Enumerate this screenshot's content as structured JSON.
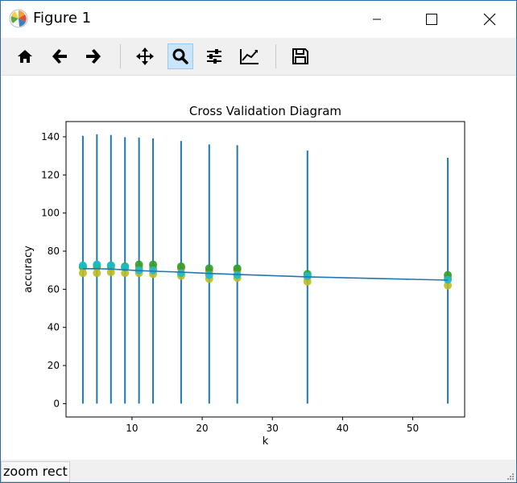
{
  "window": {
    "title": "Figure 1"
  },
  "toolbar": {
    "tools": [
      {
        "name": "home-icon"
      },
      {
        "name": "back-arrow-icon"
      },
      {
        "name": "forward-arrow-icon"
      },
      {
        "name": "pan-icon"
      },
      {
        "name": "zoom-icon",
        "active": true
      },
      {
        "name": "subplots-icon"
      },
      {
        "name": "edit-axis-icon"
      },
      {
        "name": "save-icon"
      }
    ]
  },
  "status": {
    "text": "zoom rect"
  },
  "chart_data": {
    "type": "line",
    "title": "Cross Validation Diagram",
    "xlabel": "k",
    "ylabel": "accuracy",
    "xlim": [
      0.6,
      57.4
    ],
    "ylim": [
      -7,
      148
    ],
    "xticks": [
      10,
      20,
      30,
      40,
      50
    ],
    "yticks": [
      0,
      20,
      40,
      60,
      80,
      100,
      120,
      140
    ],
    "grid": false,
    "colors": {
      "line": "#1f77b4",
      "orange": "#ff7f0e",
      "green": "#2ca02c",
      "olive": "#bcbd22",
      "cyan": "#17becf"
    },
    "mean_line": {
      "x": [
        3,
        5,
        7,
        9,
        11,
        13,
        17,
        21,
        25,
        35,
        55
      ],
      "y": [
        70.8,
        70.8,
        70.6,
        70.2,
        69.8,
        69.5,
        69.0,
        68.3,
        67.8,
        66.5,
        64.8
      ]
    },
    "error_bars": {
      "x": [
        3,
        5,
        7,
        9,
        11,
        13,
        17,
        21,
        25,
        35,
        55
      ],
      "lower": [
        0,
        0,
        0,
        0,
        0,
        0,
        0,
        0,
        0,
        0,
        0
      ],
      "upper": [
        140.5,
        141.3,
        141.0,
        139.8,
        139.6,
        139.2,
        137.8,
        136.0,
        135.6,
        132.8,
        129.0
      ]
    },
    "series": [
      {
        "color": "orange",
        "x": [
          3,
          5,
          7,
          9,
          11,
          13,
          17,
          21,
          25,
          35,
          55
        ],
        "y": [
          71.5,
          71.5,
          71.3,
          71.5,
          71.3,
          71.3,
          71.0,
          69.5,
          70.0,
          66.5,
          66.0
        ]
      },
      {
        "color": "green",
        "x": [
          3,
          5,
          7,
          9,
          11,
          13,
          17,
          21,
          25,
          35,
          55
        ],
        "y": [
          72.0,
          72.5,
          72.5,
          72.0,
          73.0,
          73.0,
          72.0,
          71.0,
          71.0,
          68.0,
          67.5
        ]
      },
      {
        "color": "olive",
        "x": [
          3,
          5,
          7,
          9,
          11,
          13,
          17,
          21,
          25,
          35,
          55
        ],
        "y": [
          68.5,
          68.5,
          69.0,
          68.5,
          68.5,
          68.0,
          67.0,
          65.5,
          66.0,
          64.0,
          62.0
        ]
      },
      {
        "color": "cyan",
        "x": [
          3,
          5,
          7,
          9,
          11,
          13,
          17,
          21,
          25,
          35,
          55
        ],
        "y": [
          72.5,
          73.0,
          72.5,
          71.5,
          70.0,
          70.0,
          68.5,
          67.5,
          67.5,
          67.0,
          65.0
        ]
      }
    ]
  }
}
